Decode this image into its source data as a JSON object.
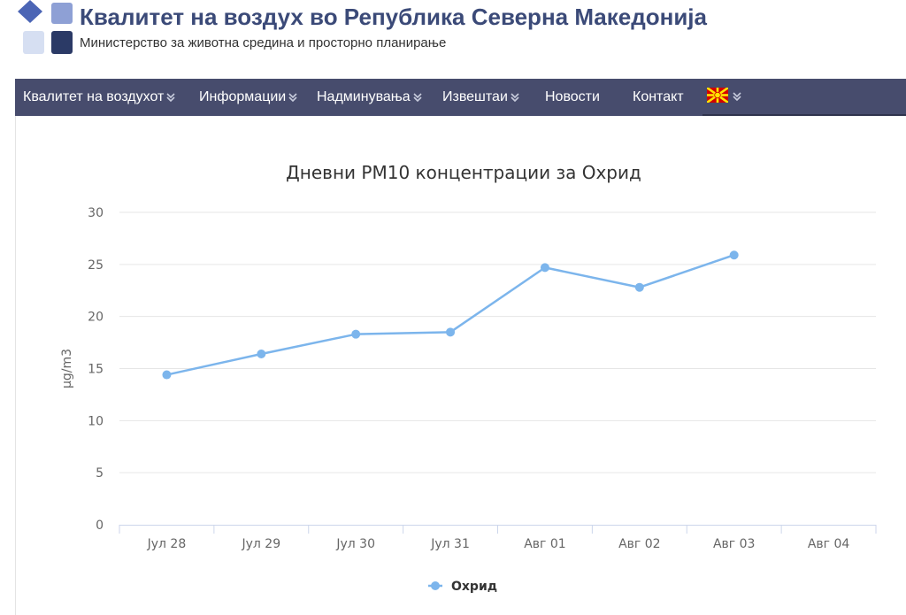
{
  "header": {
    "title": "Квалитет на воздух во Република Северна Македонија",
    "subtitle": "Министерство за животна средина и просторно планирање"
  },
  "nav": {
    "items": [
      {
        "label": "Квалитет на воздухот",
        "has_dropdown": true
      },
      {
        "label": "Информации",
        "has_dropdown": true
      },
      {
        "label": "Надминувања",
        "has_dropdown": true
      },
      {
        "label": "Извештаи",
        "has_dropdown": true
      },
      {
        "label": "Новости",
        "has_dropdown": false
      },
      {
        "label": "Контакт",
        "has_dropdown": false
      }
    ],
    "language_flag": "macedonia-flag-icon"
  },
  "colors": {
    "title": "#3b4a78",
    "navbar": "#474c6d",
    "series": "#7cb5ec"
  },
  "chart_data": {
    "type": "line",
    "title": "Дневни PM10 концентрации за Охрид",
    "ylabel": "µg/m3",
    "xlabel": "",
    "ylim": [
      0,
      30
    ],
    "yticks": [
      0,
      5,
      10,
      15,
      20,
      25,
      30
    ],
    "categories": [
      "Јул 28",
      "Јул 29",
      "Јул 30",
      "Јул 31",
      "Авг 01",
      "Авг 02",
      "Авг 03",
      "Авг 04"
    ],
    "series": [
      {
        "name": "Охрид",
        "values": [
          14.4,
          16.4,
          18.3,
          18.5,
          24.7,
          22.8,
          25.9,
          null
        ]
      }
    ],
    "grid": true,
    "legend": "bottom-center"
  }
}
